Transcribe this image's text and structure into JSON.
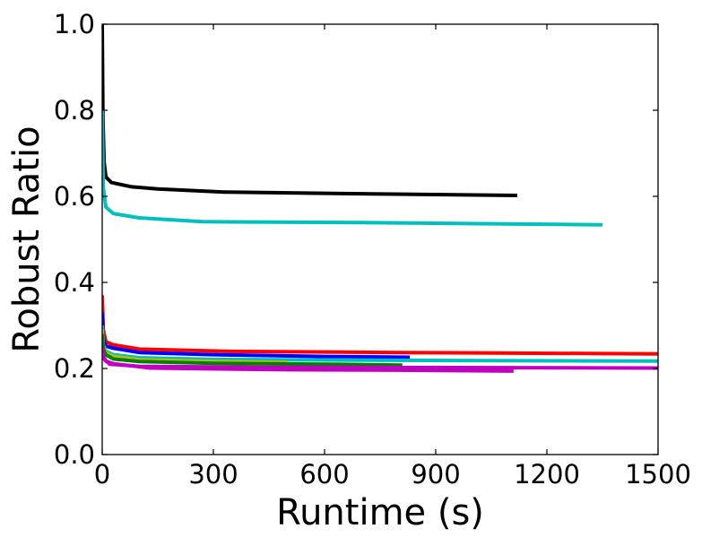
{
  "chart_data": {
    "type": "line",
    "title": "",
    "xlabel": "Runtime (s)",
    "ylabel": "Robust Ratio",
    "xlim": [
      0,
      1500
    ],
    "ylim": [
      0.0,
      1.0
    ],
    "x_ticks": [
      0,
      300,
      600,
      900,
      1200,
      1500
    ],
    "x_tick_labels": [
      "0",
      "300",
      "600",
      "900",
      "1200",
      "1500"
    ],
    "y_ticks": [
      0.0,
      0.2,
      0.4,
      0.6,
      0.8,
      1.0
    ],
    "y_tick_labels": [
      "0.0",
      "0.2",
      "0.4",
      "0.6",
      "0.8",
      "1.0"
    ],
    "grid": false,
    "series": [
      {
        "color": "#000000",
        "points": [
          [
            0,
            1.0
          ],
          [
            2,
            0.78
          ],
          [
            5,
            0.68
          ],
          [
            10,
            0.645
          ],
          [
            25,
            0.632
          ],
          [
            80,
            0.622
          ],
          [
            150,
            0.617
          ],
          [
            330,
            0.61
          ],
          [
            700,
            0.606
          ],
          [
            1120,
            0.602
          ]
        ]
      },
      {
        "color": "#00bfbf",
        "points": [
          [
            0,
            0.8
          ],
          [
            3,
            0.62
          ],
          [
            10,
            0.575
          ],
          [
            30,
            0.56
          ],
          [
            100,
            0.55
          ],
          [
            270,
            0.541
          ],
          [
            700,
            0.539
          ],
          [
            1350,
            0.534
          ]
        ]
      },
      {
        "color": "#ff0000",
        "points": [
          [
            0,
            0.37
          ],
          [
            3,
            0.29
          ],
          [
            10,
            0.262
          ],
          [
            30,
            0.255
          ],
          [
            100,
            0.245
          ],
          [
            330,
            0.24
          ],
          [
            800,
            0.237
          ],
          [
            1500,
            0.234
          ]
        ]
      },
      {
        "color": "#0000ff",
        "points": [
          [
            0,
            0.33
          ],
          [
            3,
            0.27
          ],
          [
            10,
            0.252
          ],
          [
            30,
            0.247
          ],
          [
            100,
            0.237
          ],
          [
            300,
            0.232
          ],
          [
            600,
            0.228
          ],
          [
            830,
            0.226
          ]
        ]
      },
      {
        "color": "#00bfbf",
        "points": [
          [
            0,
            0.3
          ],
          [
            3,
            0.255
          ],
          [
            10,
            0.24
          ],
          [
            30,
            0.232
          ],
          [
            100,
            0.225
          ],
          [
            300,
            0.221
          ],
          [
            800,
            0.219
          ],
          [
            1500,
            0.217
          ]
        ]
      },
      {
        "color": "#bfbf00",
        "points": [
          [
            0,
            0.29
          ],
          [
            3,
            0.25
          ],
          [
            10,
            0.236
          ],
          [
            30,
            0.228
          ],
          [
            100,
            0.22
          ],
          [
            300,
            0.216
          ],
          [
            500,
            0.214
          ]
        ]
      },
      {
        "color": "#008000",
        "points": [
          [
            0,
            0.28
          ],
          [
            3,
            0.245
          ],
          [
            10,
            0.232
          ],
          [
            30,
            0.222
          ],
          [
            100,
            0.216
          ],
          [
            300,
            0.212
          ],
          [
            600,
            0.21
          ],
          [
            810,
            0.208
          ]
        ]
      },
      {
        "color": "#bf00bf",
        "points": [
          [
            0,
            0.25
          ],
          [
            5,
            0.222
          ],
          [
            20,
            0.21
          ],
          [
            100,
            0.205
          ],
          [
            400,
            0.203
          ],
          [
            1500,
            0.201
          ]
        ]
      },
      {
        "color": "#bf00bf",
        "points": [
          [
            0,
            0.25
          ],
          [
            3,
            0.23
          ],
          [
            10,
            0.217
          ],
          [
            30,
            0.211
          ],
          [
            130,
            0.201
          ],
          [
            500,
            0.197
          ],
          [
            800,
            0.196
          ],
          [
            1110,
            0.194
          ]
        ]
      }
    ]
  }
}
